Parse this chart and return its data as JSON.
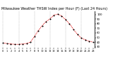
{
  "title": "Milwaukee Weather THSW Index per Hour (F) (Last 24 Hours)",
  "x_hours": [
    0,
    1,
    2,
    3,
    4,
    5,
    6,
    7,
    8,
    9,
    10,
    11,
    12,
    13,
    14,
    15,
    16,
    17,
    18,
    19,
    20,
    21,
    22,
    23
  ],
  "y_values": [
    38,
    37,
    36,
    35,
    35,
    36,
    37,
    40,
    52,
    65,
    76,
    85,
    91,
    99,
    101,
    97,
    89,
    80,
    68,
    57,
    49,
    45,
    42,
    40
  ],
  "line_color": "#dd0000",
  "marker_color": "#000000",
  "bg_color": "#ffffff",
  "grid_color": "#999999",
  "title_color": "#000000",
  "tick_color": "#000000",
  "ylim": [
    28,
    108
  ],
  "yticks": [
    30,
    40,
    50,
    60,
    70,
    80,
    90,
    100
  ],
  "ytick_labels": [
    "30",
    "40",
    "50",
    "60",
    "70",
    "80",
    "90",
    "100"
  ],
  "vgrid_positions": [
    0,
    4,
    8,
    12,
    16,
    20
  ],
  "title_fontsize": 3.5,
  "tick_fontsize": 2.8,
  "xlabel_fontsize": 2.5
}
